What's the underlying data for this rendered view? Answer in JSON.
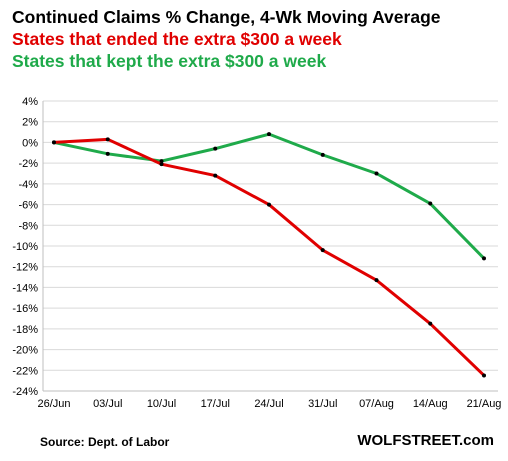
{
  "chart_data": {
    "type": "line",
    "title": "Continued Claims % Change, 4-Wk Moving Average",
    "categories": [
      "26/Jun",
      "03/Jul",
      "10/Jul",
      "17/Jul",
      "24/Jul",
      "31/Jul",
      "07/Aug",
      "14/Aug",
      "21/Aug"
    ],
    "series": [
      {
        "name": "States that ended the extra $300 a week",
        "color": "#e00000",
        "values": [
          0.0,
          0.3,
          -2.1,
          -3.2,
          -6.0,
          -10.4,
          -13.3,
          -17.5,
          -22.5
        ]
      },
      {
        "name": "States that kept the extra $300 a week",
        "color": "#1faa4a",
        "values": [
          0.0,
          -1.1,
          -1.8,
          -0.6,
          0.8,
          -1.2,
          -3.0,
          -5.9,
          -11.2
        ]
      }
    ],
    "ylim": [
      -24,
      4
    ],
    "yticks": [
      4,
      2,
      0,
      -2,
      -4,
      -6,
      -8,
      -10,
      -12,
      -14,
      -16,
      -18,
      -20,
      -22,
      -24
    ],
    "ytick_suffix": "%",
    "grid": "horizontal",
    "xlabel": "",
    "ylabel": ""
  },
  "footer": {
    "source": "Source: Dept. of Labor",
    "brand": "WOLFSTREET.com"
  }
}
